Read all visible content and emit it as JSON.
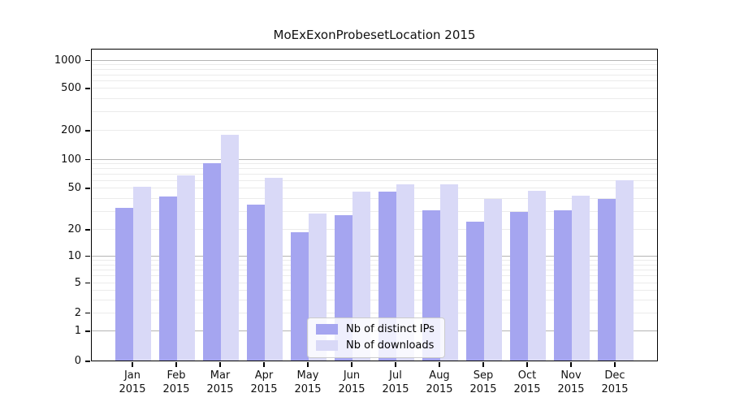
{
  "chart_data": {
    "type": "bar",
    "title": "MoExExonProbesetLocation 2015",
    "year_label": "2015",
    "categories": [
      "Jan",
      "Feb",
      "Mar",
      "Apr",
      "May",
      "Jun",
      "Jul",
      "Aug",
      "Sep",
      "Oct",
      "Nov",
      "Dec"
    ],
    "x_tick_labels": [
      "Jan 2015",
      "Feb 2015",
      "Mar 2015",
      "Apr 2015",
      "May 2015",
      "Jun 2015",
      "Jul 2015",
      "Aug 2015",
      "Sep 2015",
      "Oct 2015",
      "Nov 2015",
      "Dec 2015"
    ],
    "series": [
      {
        "name": "Nb of distinct IPs",
        "color": "#a5a5f0",
        "values": [
          33,
          42,
          92,
          35,
          19,
          28,
          47,
          31,
          24,
          30,
          31,
          40
        ]
      },
      {
        "name": "Nb of downloads",
        "color": "#d9d9f7",
        "values": [
          53,
          69,
          184,
          65,
          29,
          47,
          56,
          56,
          40,
          48,
          43,
          61
        ]
      }
    ],
    "yscale": "symlog",
    "y_ticks": [
      0,
      1,
      2,
      5,
      10,
      20,
      50,
      100,
      200,
      500,
      1000
    ],
    "ylim": [
      0,
      1300
    ],
    "grid": "horizontal, light minor lines at log subdivisions, darker lines at 1/10/100/1000",
    "legend_position": "bottom-center inside plot",
    "colors": {
      "major_grid": "#b4b4b4",
      "minor_grid": "#ebebeb",
      "axis": "#000000",
      "background": "#ffffff"
    }
  }
}
